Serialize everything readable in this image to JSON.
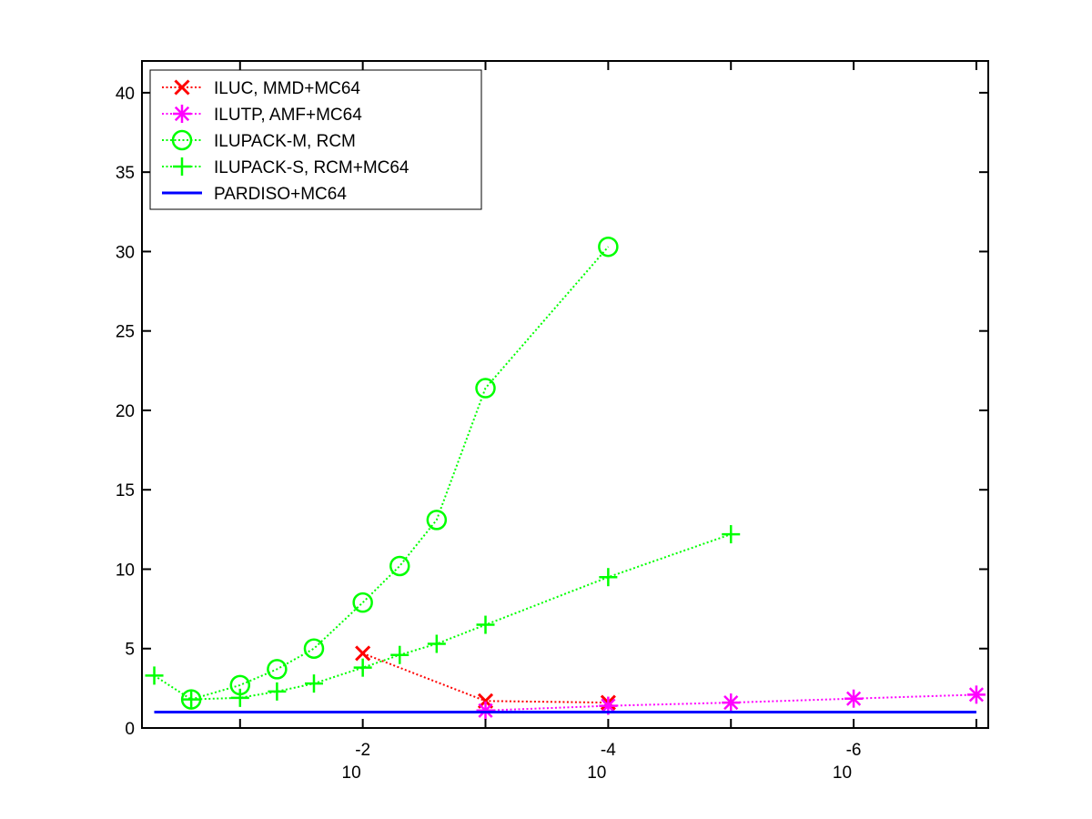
{
  "chart_data": {
    "type": "line",
    "title": "",
    "xlabel": "",
    "ylabel": "",
    "xscale": "log",
    "x_reversed": true,
    "xlim": [
      0.63,
      8e-08
    ],
    "ylim": [
      0,
      42
    ],
    "yticks": [
      0,
      5,
      10,
      15,
      20,
      25,
      30,
      35,
      40
    ],
    "xticks": [
      {
        "value": 0.01,
        "base": "10",
        "exponent": "-2"
      },
      {
        "value": 0.0001,
        "base": "10",
        "exponent": "-4"
      },
      {
        "value": 1e-06,
        "base": "10",
        "exponent": "-6"
      }
    ],
    "grid": false,
    "legend_position": "top-left",
    "series": [
      {
        "name": "ILUC, MMD+MC64",
        "color": "#ff0000",
        "marker": "x",
        "line": "dotted",
        "points": [
          [
            0.01,
            4.7
          ],
          [
            0.001,
            1.7
          ],
          [
            0.0001,
            1.6
          ]
        ]
      },
      {
        "name": "ILUTP, AMF+MC64",
        "color": "#ff00ff",
        "marker": "asterisk",
        "line": "dotted",
        "points": [
          [
            0.001,
            1.1
          ],
          [
            0.0001,
            1.4
          ],
          [
            1e-05,
            1.6
          ],
          [
            1e-06,
            1.85
          ],
          [
            1e-07,
            2.1
          ]
        ]
      },
      {
        "name": "ILUPACK-M, RCM",
        "color": "#00ff00",
        "marker": "circle",
        "line": "dotted",
        "points": [
          [
            0.25,
            1.8
          ],
          [
            0.1,
            2.7
          ],
          [
            0.05,
            3.7
          ],
          [
            0.025,
            5.0
          ],
          [
            0.01,
            7.9
          ],
          [
            0.005,
            10.2
          ],
          [
            0.0025,
            13.1
          ],
          [
            0.001,
            21.4
          ],
          [
            0.0001,
            30.3
          ]
        ]
      },
      {
        "name": "ILUPACK-S, RCM+MC64",
        "color": "#00ff00",
        "marker": "plus",
        "line": "dotted",
        "points": [
          [
            0.5,
            3.3
          ],
          [
            0.25,
            1.8
          ],
          [
            0.1,
            1.9
          ],
          [
            0.05,
            2.3
          ],
          [
            0.025,
            2.8
          ],
          [
            0.01,
            3.8
          ],
          [
            0.005,
            4.6
          ],
          [
            0.0025,
            5.3
          ],
          [
            0.001,
            6.5
          ],
          [
            0.0001,
            9.5
          ],
          [
            1e-05,
            12.2
          ]
        ]
      },
      {
        "name": "PARDISO+MC64",
        "color": "#0000ff",
        "marker": "none",
        "line": "solid",
        "points": [
          [
            0.5,
            1.0
          ],
          [
            1e-07,
            1.0
          ]
        ]
      }
    ]
  }
}
